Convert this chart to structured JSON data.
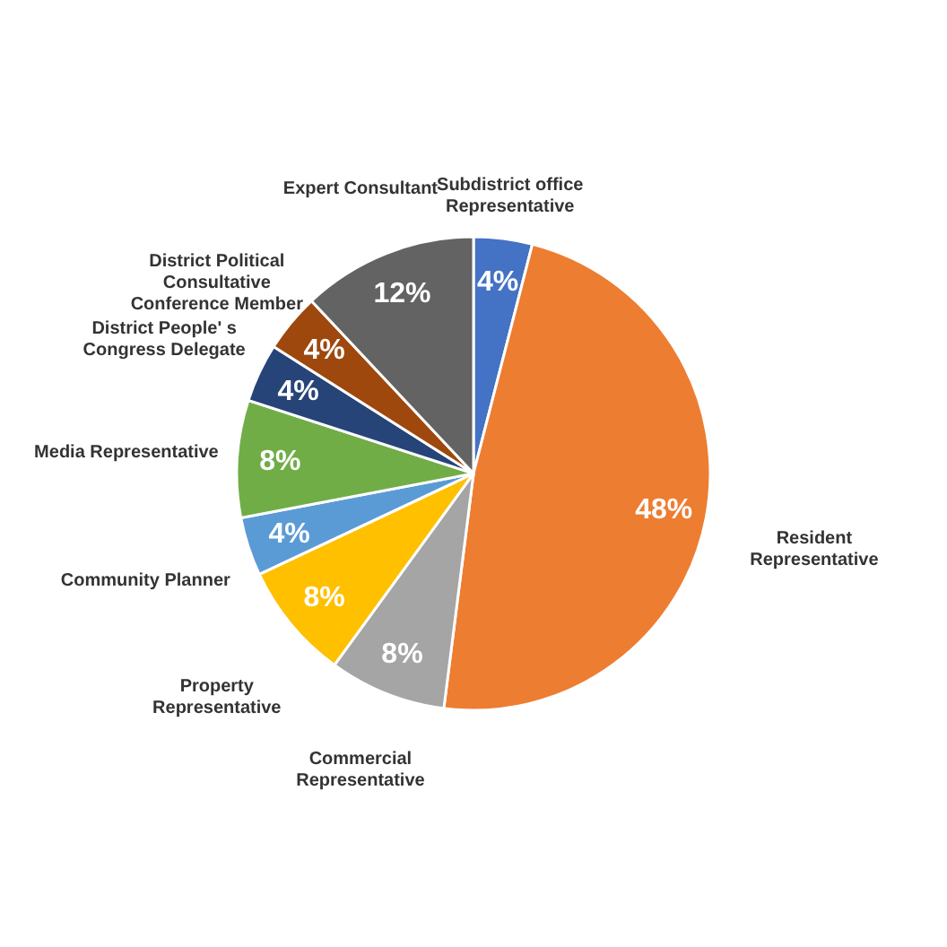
{
  "chart_data": {
    "type": "pie",
    "categories": [
      "Subdistrict office Representative",
      "Resident Representative",
      "Commercial Representative",
      "Property Representative",
      "Community Planner",
      "Media Representative",
      "District People' s Congress Delegate",
      "District Political Consultative Conference Member",
      "Expert Consultant"
    ],
    "values": [
      4,
      48,
      8,
      8,
      4,
      8,
      4,
      4,
      12
    ],
    "value_labels": [
      "4%",
      "48%",
      "8%",
      "8%",
      "4%",
      "8%",
      "4%",
      "4%",
      "12%"
    ],
    "colors": [
      "#4472c4",
      "#ed7d31",
      "#a5a5a5",
      "#ffc000",
      "#5b9bd5",
      "#70ad47",
      "#264478",
      "#9e480e",
      "#636363"
    ],
    "legend": false
  }
}
